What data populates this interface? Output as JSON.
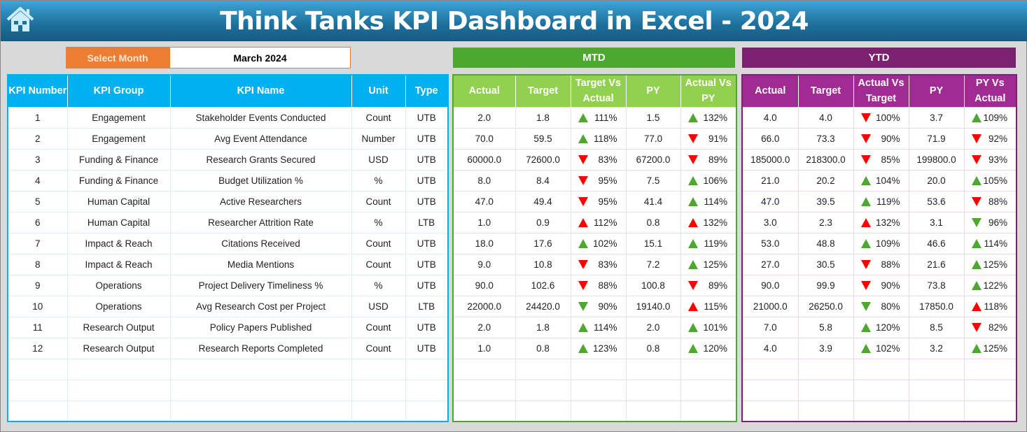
{
  "title": "Think Tanks KPI Dashboard in Excel - 2024",
  "select_month": {
    "label": "Select Month",
    "value": "March 2024"
  },
  "sections": {
    "mtd": "MTD",
    "ytd": "YTD"
  },
  "colors": {
    "up_green": "#4ea72e",
    "down_red": "#ff0000",
    "accent_blue": "#00b0f0",
    "mtd_green": "#4ea72e",
    "ytd_purple": "#7b2170",
    "orange": "#ed7d31"
  },
  "left_headers": [
    "KPI Number",
    "KPI Group",
    "KPI Name",
    "Unit",
    "Type"
  ],
  "mtd_headers": [
    "Actual",
    "Target",
    "Target Vs Actual",
    "PY",
    "Actual Vs PY"
  ],
  "ytd_headers": [
    "Actual",
    "Target",
    "Actual Vs Target",
    "PY",
    "PY Vs Actual"
  ],
  "rows": [
    {
      "num": "1",
      "group": "Engagement",
      "name": "Stakeholder Events Conducted",
      "unit": "Count",
      "type": "UTB",
      "mtd": [
        "2.0",
        "1.8",
        [
          "up",
          "green",
          "111%"
        ],
        "1.5",
        [
          "up",
          "green",
          "132%"
        ]
      ],
      "ytd": [
        "4.0",
        "4.0",
        [
          "down",
          "red",
          "100%"
        ],
        "3.7",
        [
          "up",
          "green",
          "109%"
        ]
      ]
    },
    {
      "num": "2",
      "group": "Engagement",
      "name": "Avg Event Attendance",
      "unit": "Number",
      "type": "UTB",
      "mtd": [
        "70.0",
        "59.5",
        [
          "up",
          "green",
          "118%"
        ],
        "77.0",
        [
          "down",
          "red",
          "91%"
        ]
      ],
      "ytd": [
        "66.0",
        "73.3",
        [
          "down",
          "red",
          "90%"
        ],
        "71.9",
        [
          "down",
          "red",
          "92%"
        ]
      ]
    },
    {
      "num": "3",
      "group": "Funding & Finance",
      "name": "Research Grants Secured",
      "unit": "USD",
      "type": "UTB",
      "mtd": [
        "60000.0",
        "72600.0",
        [
          "down",
          "red",
          "83%"
        ],
        "67200.0",
        [
          "down",
          "red",
          "89%"
        ]
      ],
      "ytd": [
        "185000.0",
        "218300.0",
        [
          "down",
          "red",
          "85%"
        ],
        "199800.0",
        [
          "down",
          "red",
          "93%"
        ]
      ]
    },
    {
      "num": "4",
      "group": "Funding & Finance",
      "name": "Budget Utilization %",
      "unit": "%",
      "type": "UTB",
      "mtd": [
        "8.0",
        "8.4",
        [
          "down",
          "red",
          "95%"
        ],
        "7.5",
        [
          "up",
          "green",
          "106%"
        ]
      ],
      "ytd": [
        "21.0",
        "20.2",
        [
          "up",
          "green",
          "104%"
        ],
        "20.0",
        [
          "up",
          "green",
          "105%"
        ]
      ]
    },
    {
      "num": "5",
      "group": "Human Capital",
      "name": "Active Researchers",
      "unit": "Count",
      "type": "UTB",
      "mtd": [
        "47.0",
        "49.4",
        [
          "down",
          "red",
          "95%"
        ],
        "41.4",
        [
          "up",
          "green",
          "114%"
        ]
      ],
      "ytd": [
        "47.0",
        "39.5",
        [
          "up",
          "green",
          "119%"
        ],
        "53.6",
        [
          "down",
          "red",
          "88%"
        ]
      ]
    },
    {
      "num": "6",
      "group": "Human Capital",
      "name": "Researcher Attrition Rate",
      "unit": "%",
      "type": "LTB",
      "mtd": [
        "1.0",
        "0.9",
        [
          "up",
          "red",
          "112%"
        ],
        "0.8",
        [
          "up",
          "red",
          "132%"
        ]
      ],
      "ytd": [
        "3.0",
        "2.3",
        [
          "up",
          "red",
          "132%"
        ],
        "3.1",
        [
          "down",
          "green",
          "96%"
        ]
      ]
    },
    {
      "num": "7",
      "group": "Impact & Reach",
      "name": "Citations Received",
      "unit": "Count",
      "type": "UTB",
      "mtd": [
        "18.0",
        "17.6",
        [
          "up",
          "green",
          "102%"
        ],
        "15.1",
        [
          "up",
          "green",
          "119%"
        ]
      ],
      "ytd": [
        "53.0",
        "48.8",
        [
          "up",
          "green",
          "109%"
        ],
        "46.6",
        [
          "up",
          "green",
          "114%"
        ]
      ]
    },
    {
      "num": "8",
      "group": "Impact & Reach",
      "name": "Media Mentions",
      "unit": "Count",
      "type": "UTB",
      "mtd": [
        "9.0",
        "10.8",
        [
          "down",
          "red",
          "83%"
        ],
        "7.2",
        [
          "up",
          "green",
          "125%"
        ]
      ],
      "ytd": [
        "27.0",
        "30.5",
        [
          "down",
          "red",
          "88%"
        ],
        "21.6",
        [
          "up",
          "green",
          "125%"
        ]
      ]
    },
    {
      "num": "9",
      "group": "Operations",
      "name": "Project Delivery Timeliness %",
      "unit": "%",
      "type": "UTB",
      "mtd": [
        "90.0",
        "102.6",
        [
          "down",
          "red",
          "88%"
        ],
        "100.8",
        [
          "down",
          "red",
          "89%"
        ]
      ],
      "ytd": [
        "90.0",
        "99.9",
        [
          "down",
          "red",
          "90%"
        ],
        "73.8",
        [
          "up",
          "green",
          "122%"
        ]
      ]
    },
    {
      "num": "10",
      "group": "Operations",
      "name": "Avg Research Cost per Project",
      "unit": "USD",
      "type": "LTB",
      "mtd": [
        "22000.0",
        "24420.0",
        [
          "down",
          "green",
          "90%"
        ],
        "19140.0",
        [
          "up",
          "red",
          "115%"
        ]
      ],
      "ytd": [
        "21000.0",
        "26250.0",
        [
          "down",
          "green",
          "80%"
        ],
        "17850.0",
        [
          "up",
          "red",
          "118%"
        ]
      ]
    },
    {
      "num": "11",
      "group": "Research Output",
      "name": "Policy Papers Published",
      "unit": "Count",
      "type": "UTB",
      "mtd": [
        "2.0",
        "1.8",
        [
          "up",
          "green",
          "114%"
        ],
        "2.0",
        [
          "up",
          "green",
          "101%"
        ]
      ],
      "ytd": [
        "7.0",
        "5.8",
        [
          "up",
          "green",
          "120%"
        ],
        "8.5",
        [
          "down",
          "red",
          "82%"
        ]
      ]
    },
    {
      "num": "12",
      "group": "Research Output",
      "name": "Research Reports Completed",
      "unit": "Count",
      "type": "UTB",
      "mtd": [
        "1.0",
        "0.8",
        [
          "up",
          "green",
          "123%"
        ],
        "0.8",
        [
          "up",
          "green",
          "120%"
        ]
      ],
      "ytd": [
        "4.0",
        "3.9",
        [
          "up",
          "green",
          "102%"
        ],
        "3.2",
        [
          "up",
          "green",
          "125%"
        ]
      ]
    }
  ]
}
